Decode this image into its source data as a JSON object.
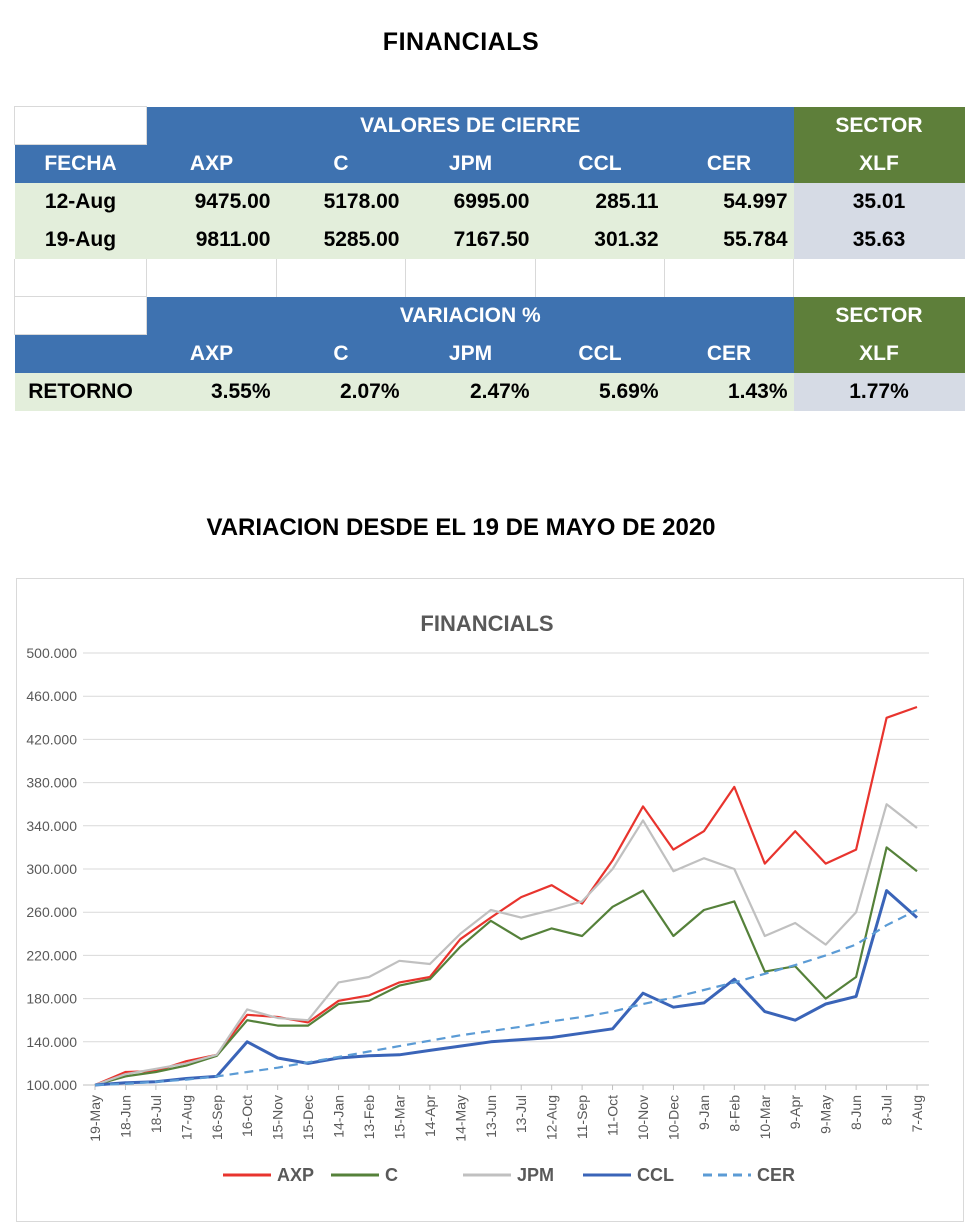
{
  "page_title": "FINANCIALS",
  "table1": {
    "group_header": "VALORES DE CIERRE",
    "sector_header": "SECTOR",
    "sector_sub": "XLF",
    "columns": [
      "FECHA",
      "AXP",
      "C",
      "JPM",
      "CCL",
      "CER"
    ],
    "rows": [
      {
        "fecha": "12-Aug",
        "values": [
          "9475.00",
          "5178.00",
          "6995.00",
          "285.11",
          "54.997"
        ],
        "xlf": "35.01"
      },
      {
        "fecha": "19-Aug",
        "values": [
          "9811.00",
          "5285.00",
          "7167.50",
          "301.32",
          "55.784"
        ],
        "xlf": "35.63"
      }
    ]
  },
  "table2": {
    "group_header": "VARIACION %",
    "sector_header": "SECTOR",
    "sector_sub": "XLF",
    "columns": [
      "AXP",
      "C",
      "JPM",
      "CCL",
      "CER"
    ],
    "row": {
      "label": "RETORNO",
      "values": [
        "3.55%",
        "2.07%",
        "2.47%",
        "5.69%",
        "1.43%"
      ],
      "xlf": "1.77%"
    }
  },
  "chart_title_header": "VARIACION DESDE EL 19 DE MAYO DE 2020",
  "chart_data": {
    "type": "line",
    "title": "FINANCIALS",
    "ylim": [
      100,
      500
    ],
    "yticks": [
      "100.000",
      "140.000",
      "180.000",
      "220.000",
      "260.000",
      "300.000",
      "340.000",
      "380.000",
      "420.000",
      "460.000",
      "500.000"
    ],
    "x": [
      "19-May",
      "18-Jun",
      "18-Jul",
      "17-Aug",
      "16-Sep",
      "16-Oct",
      "15-Nov",
      "15-Dec",
      "14-Jan",
      "13-Feb",
      "15-Mar",
      "14-Apr",
      "14-May",
      "13-Jun",
      "13-Jul",
      "12-Aug",
      "11-Sep",
      "11-Oct",
      "10-Nov",
      "10-Dec",
      "9-Jan",
      "8-Feb",
      "10-Mar",
      "9-Apr",
      "9-May",
      "8-Jun",
      "8-Jul",
      "7-Aug"
    ],
    "grid": true,
    "legend": "bottom",
    "series": [
      {
        "name": "AXP",
        "color": "#e8342e",
        "style": "solid",
        "values": [
          100,
          112,
          113,
          122,
          128,
          165,
          163,
          158,
          178,
          183,
          195,
          200,
          235,
          255,
          274,
          285,
          268,
          308,
          358,
          318,
          335,
          376,
          305,
          335,
          305,
          318,
          440,
          450
        ]
      },
      {
        "name": "C",
        "color": "#55813a",
        "style": "solid",
        "values": [
          100,
          108,
          112,
          118,
          127,
          160,
          155,
          155,
          175,
          178,
          192,
          198,
          228,
          252,
          235,
          245,
          238,
          265,
          280,
          238,
          262,
          270,
          205,
          210,
          180,
          200,
          320,
          298
        ]
      },
      {
        "name": "JPM",
        "color": "#c0c0c0",
        "style": "solid",
        "values": [
          100,
          110,
          115,
          120,
          128,
          170,
          162,
          160,
          195,
          200,
          215,
          212,
          240,
          262,
          255,
          262,
          270,
          300,
          345,
          298,
          310,
          300,
          238,
          250,
          230,
          260,
          360,
          338
        ]
      },
      {
        "name": "CCL",
        "color": "#3a64b8",
        "style": "solid",
        "values": [
          100,
          102,
          103,
          106,
          108,
          140,
          125,
          120,
          125,
          127,
          128,
          132,
          136,
          140,
          142,
          144,
          148,
          152,
          185,
          172,
          176,
          198,
          168,
          160,
          175,
          182,
          280,
          255
        ]
      },
      {
        "name": "CER",
        "color": "#5b9bd5",
        "style": "dashed",
        "values": [
          100,
          101,
          103,
          105,
          108,
          112,
          116,
          121,
          126,
          131,
          136,
          141,
          146,
          150,
          154,
          159,
          163,
          168,
          175,
          181,
          188,
          195,
          203,
          211,
          220,
          230,
          248,
          262
        ]
      }
    ]
  }
}
